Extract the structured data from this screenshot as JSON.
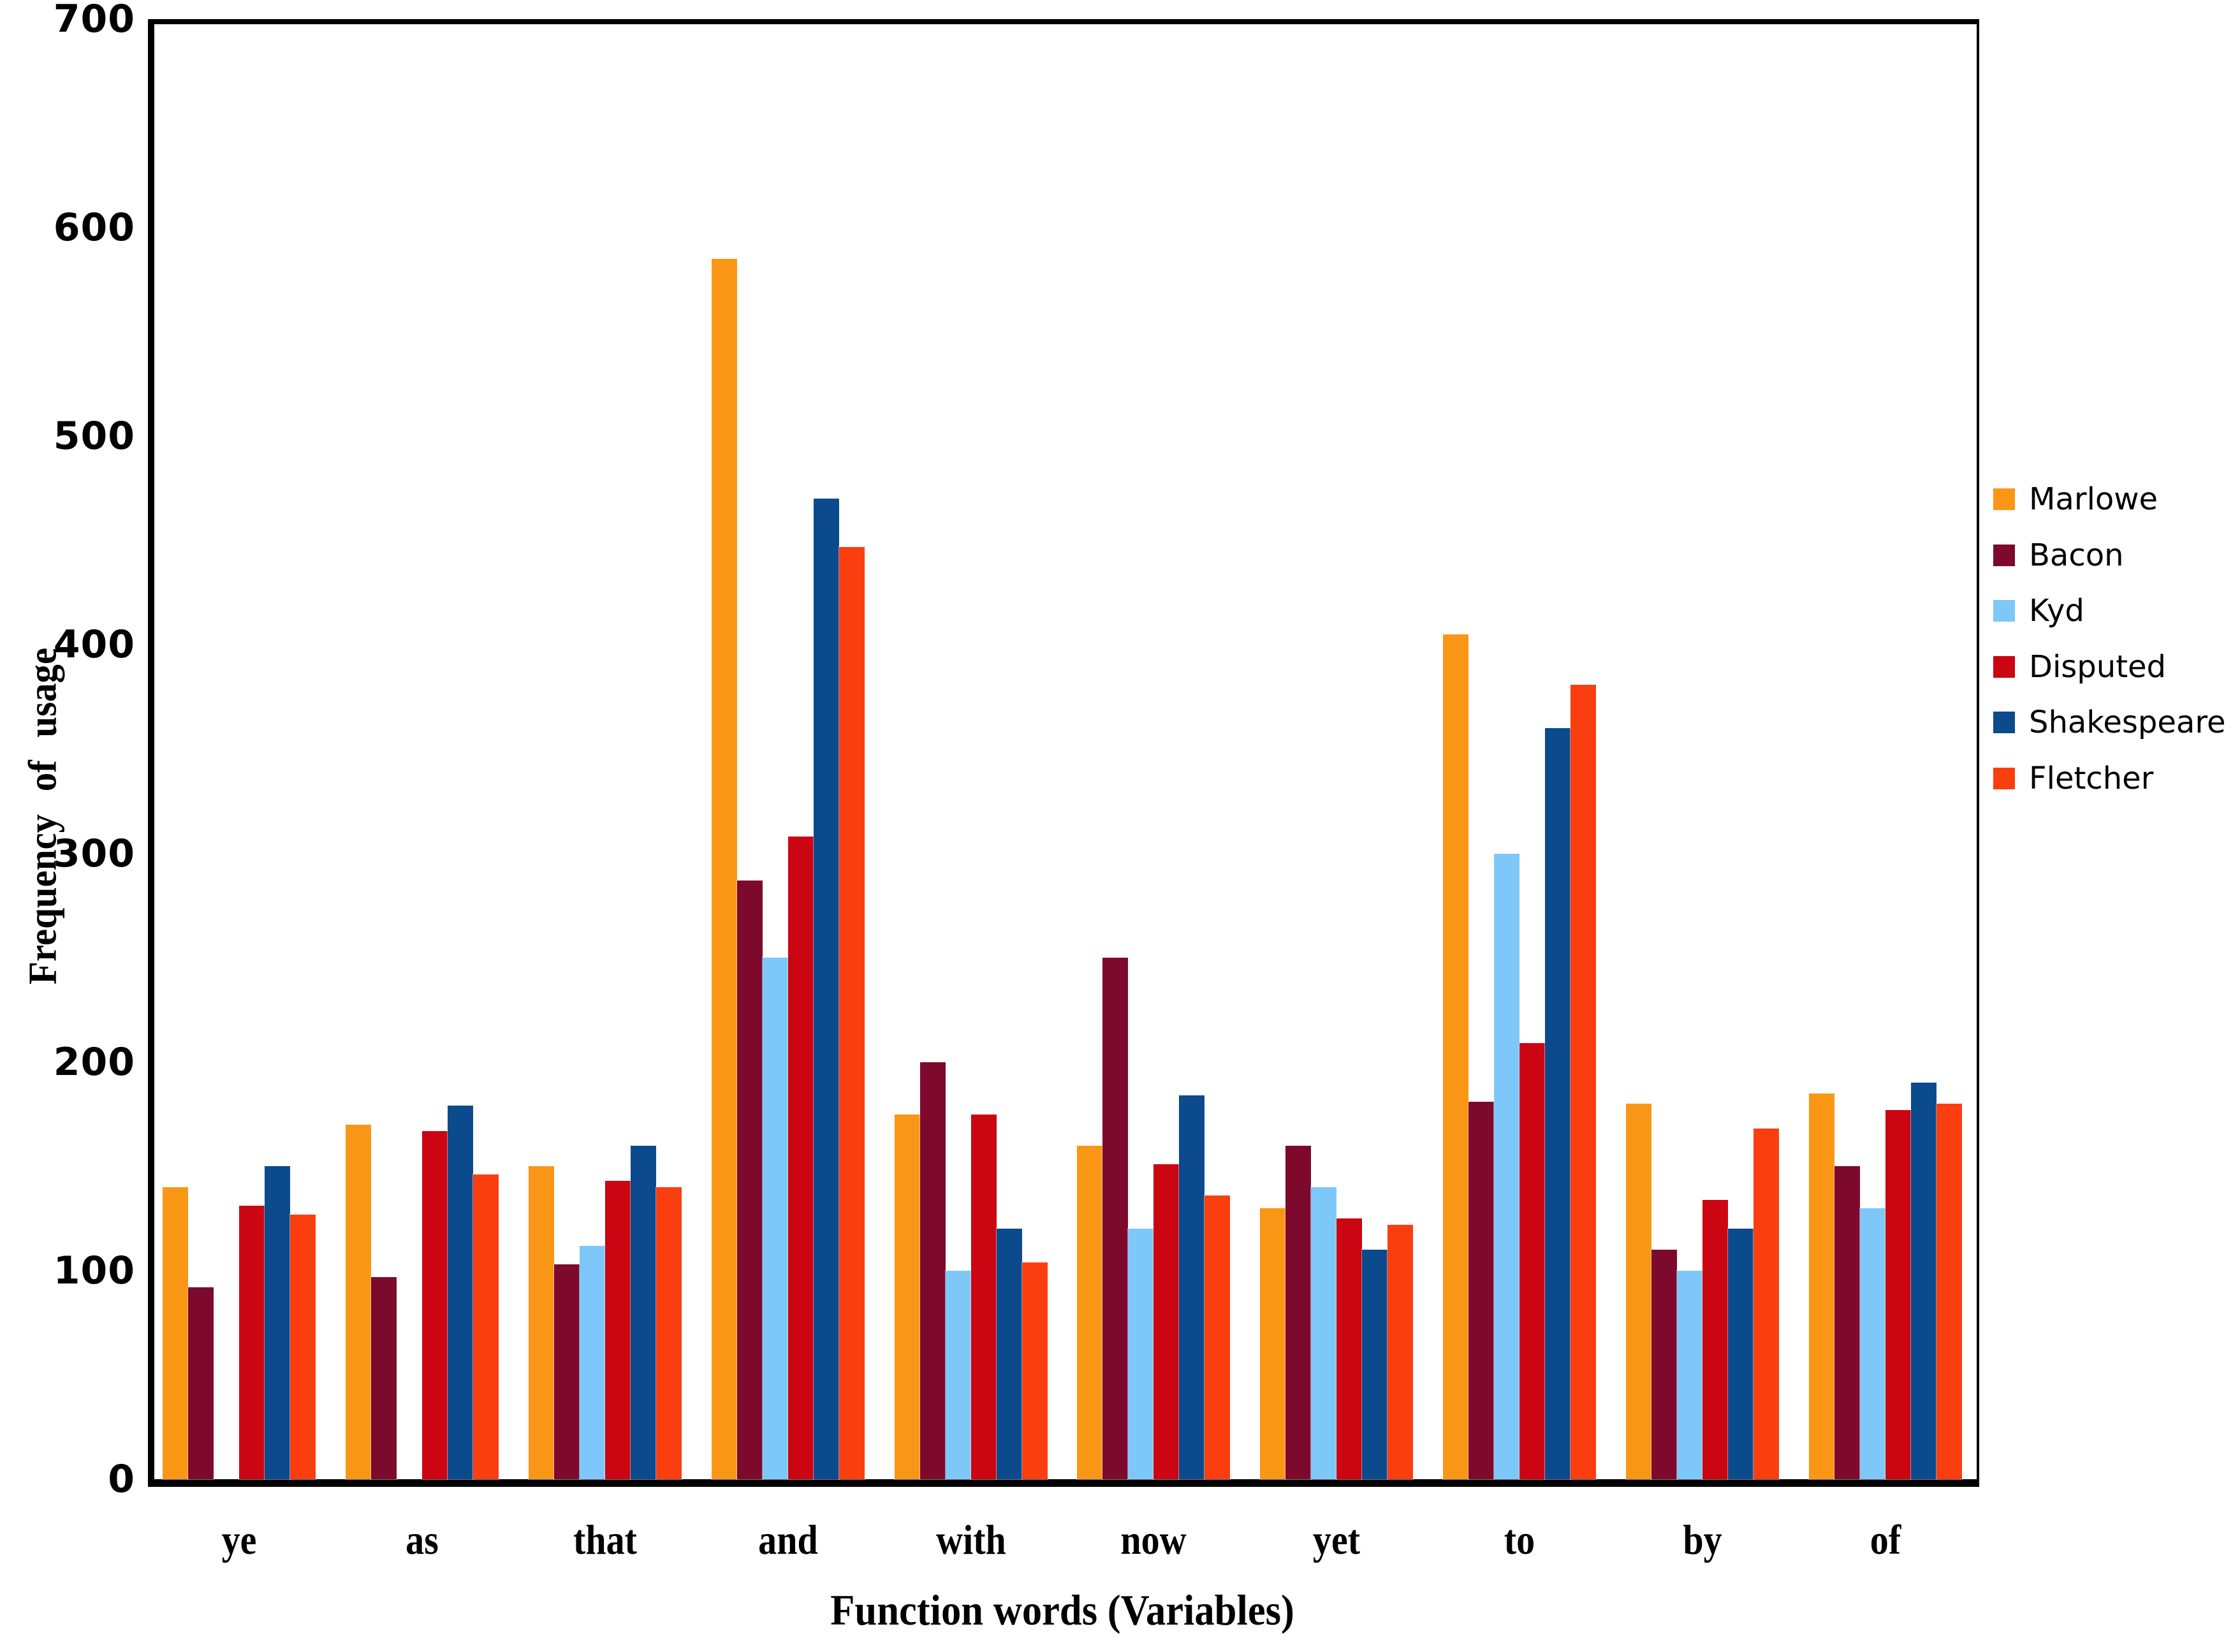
{
  "chart_data": {
    "type": "bar",
    "title": "",
    "xlabel": "Function words (Variables)",
    "ylabel": "Frequency  of  usage",
    "ylim": [
      0,
      700
    ],
    "ytick_step": 100,
    "yticks": [
      "0",
      "100",
      "200",
      "300",
      "400",
      "500",
      "600",
      "700"
    ],
    "grid": false,
    "legend_position": "right",
    "categories": [
      "ye",
      "as",
      "that",
      "and",
      "with",
      "now",
      "yet",
      "to",
      "by",
      "of"
    ],
    "series": [
      {
        "name": "Marlowe",
        "color": "#FA9616",
        "values": [
          140,
          170,
          150,
          585,
          175,
          160,
          130,
          405,
          180,
          185
        ]
      },
      {
        "name": "Bacon",
        "color": "#7D0A2D",
        "values": [
          92,
          97,
          103,
          287,
          200,
          250,
          160,
          181,
          110,
          150
        ]
      },
      {
        "name": "Kyd",
        "color": "#7EC8F9",
        "values": [
          0,
          0,
          112,
          250,
          100,
          120,
          140,
          300,
          100,
          130
        ]
      },
      {
        "name": "Disputed",
        "color": "#CB0511",
        "values": [
          131,
          167,
          143,
          308,
          175,
          151,
          125,
          209,
          134,
          177
        ]
      },
      {
        "name": "Shakespeare",
        "color": "#0B4A8C",
        "values": [
          150,
          179,
          160,
          470,
          120,
          184,
          110,
          360,
          120,
          190
        ]
      },
      {
        "name": "Fletcher",
        "color": "#FB3E0F",
        "values": [
          127,
          146,
          140,
          447,
          104,
          136,
          122,
          381,
          168,
          180
        ]
      }
    ]
  }
}
